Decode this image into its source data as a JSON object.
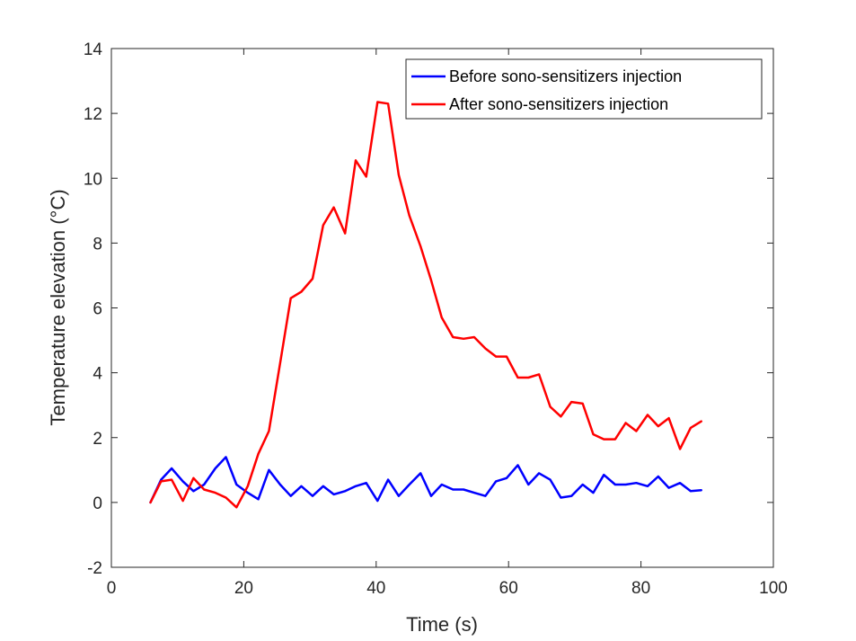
{
  "chart_data": {
    "type": "line",
    "xlabel": "Time (s)",
    "ylabel": "Temperature elevation (°C)",
    "xlim": [
      0,
      100
    ],
    "ylim": [
      -2,
      14
    ],
    "xticks": [
      0,
      20,
      40,
      60,
      80,
      100
    ],
    "yticks": [
      -2,
      0,
      2,
      4,
      6,
      8,
      10,
      12,
      14
    ],
    "grid": false,
    "legend_position": "top-right",
    "series": [
      {
        "name": "Before sono-sensitizers injection",
        "color": "#0000ff",
        "x": [
          5.9,
          7.5,
          9.1,
          10.8,
          12.4,
          14.0,
          15.7,
          17.3,
          18.9,
          20.6,
          22.2,
          23.8,
          25.5,
          27.1,
          28.7,
          30.4,
          32.0,
          33.6,
          35.3,
          36.9,
          38.5,
          40.2,
          41.8,
          43.4,
          45.0,
          46.7,
          48.3,
          49.9,
          51.6,
          53.2,
          54.8,
          56.5,
          58.1,
          59.7,
          61.4,
          63.0,
          64.6,
          66.3,
          67.9,
          69.5,
          71.2,
          72.8,
          74.4,
          76.1,
          77.7,
          79.3,
          81.0,
          82.6,
          84.2,
          85.9,
          87.5,
          89.1
        ],
        "y": [
          0.0,
          0.7,
          1.05,
          0.65,
          0.35,
          0.55,
          1.05,
          1.4,
          0.55,
          0.3,
          0.1,
          1.0,
          0.55,
          0.2,
          0.5,
          0.2,
          0.5,
          0.25,
          0.35,
          0.5,
          0.6,
          0.05,
          0.7,
          0.2,
          0.55,
          0.9,
          0.2,
          0.55,
          0.4,
          0.4,
          0.3,
          0.2,
          0.65,
          0.75,
          1.15,
          0.55,
          0.9,
          0.7,
          0.15,
          0.2,
          0.55,
          0.3,
          0.85,
          0.55,
          0.55,
          0.6,
          0.5,
          0.8,
          0.45,
          0.6,
          0.35,
          0.38
        ]
      },
      {
        "name": "After sono-sensitizers injection",
        "color": "#ff0000",
        "x": [
          5.9,
          7.5,
          9.1,
          10.8,
          12.4,
          14.0,
          15.7,
          17.3,
          18.9,
          20.6,
          22.2,
          23.8,
          25.5,
          27.1,
          28.7,
          30.4,
          32.0,
          33.6,
          35.3,
          36.9,
          38.5,
          40.2,
          41.8,
          43.4,
          45.0,
          46.7,
          48.3,
          49.9,
          51.6,
          53.2,
          54.8,
          56.5,
          58.1,
          59.7,
          61.4,
          63.0,
          64.6,
          66.3,
          67.9,
          69.5,
          71.2,
          72.8,
          74.4,
          76.1,
          77.7,
          79.3,
          81.0,
          82.6,
          84.2,
          85.9,
          87.5,
          89.1
        ],
        "y": [
          0.0,
          0.65,
          0.7,
          0.05,
          0.75,
          0.4,
          0.3,
          0.15,
          -0.15,
          0.5,
          1.5,
          2.2,
          4.3,
          6.3,
          6.5,
          6.9,
          8.55,
          9.1,
          8.3,
          10.55,
          10.05,
          12.35,
          12.3,
          10.1,
          8.85,
          7.9,
          6.85,
          5.7,
          5.1,
          5.05,
          5.1,
          4.75,
          4.5,
          4.5,
          3.85,
          3.85,
          3.95,
          2.95,
          2.65,
          3.1,
          3.05,
          2.1,
          1.95,
          1.95,
          2.45,
          2.2,
          2.7,
          2.35,
          2.6,
          1.65,
          2.3,
          2.5
        ]
      }
    ]
  }
}
